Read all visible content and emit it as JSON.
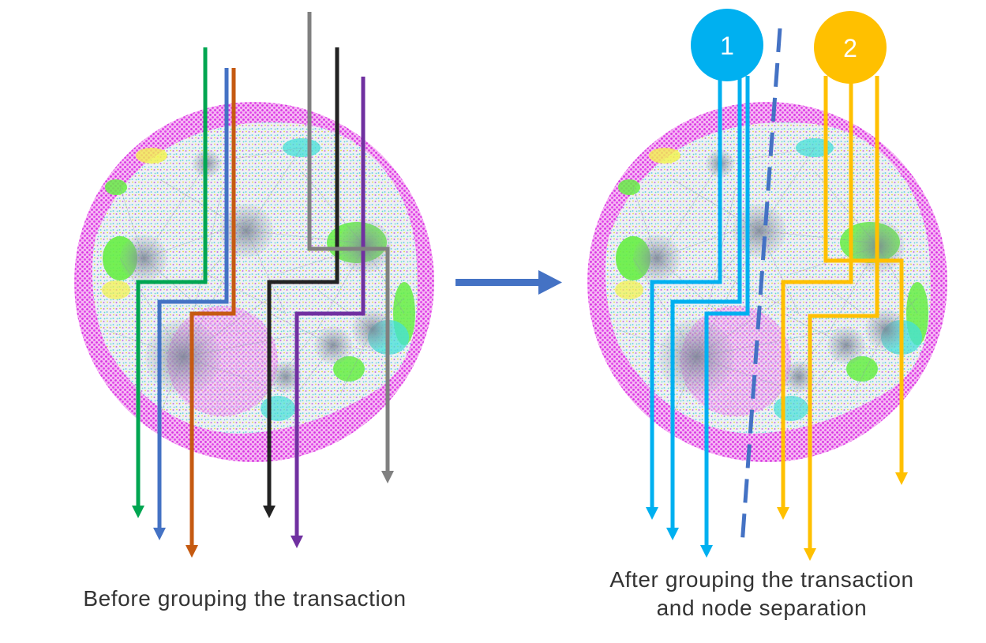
{
  "captions": {
    "before": "Before grouping the transaction",
    "after_line1": "After grouping the transaction",
    "after_line2": "and node separation"
  },
  "groups": [
    {
      "label": "1",
      "color": "#00b0f0"
    },
    {
      "label": "2",
      "color": "#ffc000"
    }
  ],
  "transaction_colors": {
    "before": [
      "#00a651",
      "#4472c4",
      "#c55a11",
      "#222222",
      "#7030a0",
      "#808080"
    ]
  },
  "colors": {
    "separator": "#4472c4",
    "process_arrow": "#4472c4",
    "network_shell": "#e040e8",
    "cluster_green": "#66ee44",
    "cluster_cyan": "#44e0d8",
    "edges": "#8a96a8"
  }
}
